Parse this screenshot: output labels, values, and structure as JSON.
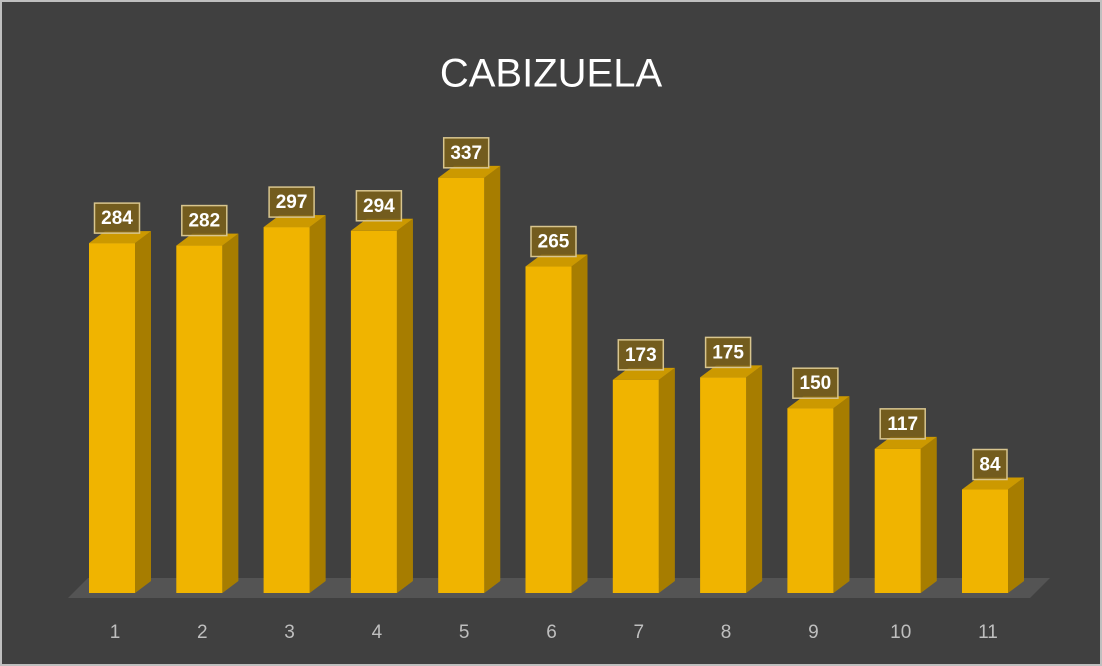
{
  "chart_data": {
    "type": "bar3d",
    "title": "CABIZUELA",
    "categories": [
      "1",
      "2",
      "3",
      "4",
      "5",
      "6",
      "7",
      "8",
      "9",
      "10",
      "11"
    ],
    "values": [
      284,
      282,
      297,
      294,
      337,
      265,
      173,
      175,
      150,
      117,
      84
    ],
    "color": "#f0b400"
  }
}
